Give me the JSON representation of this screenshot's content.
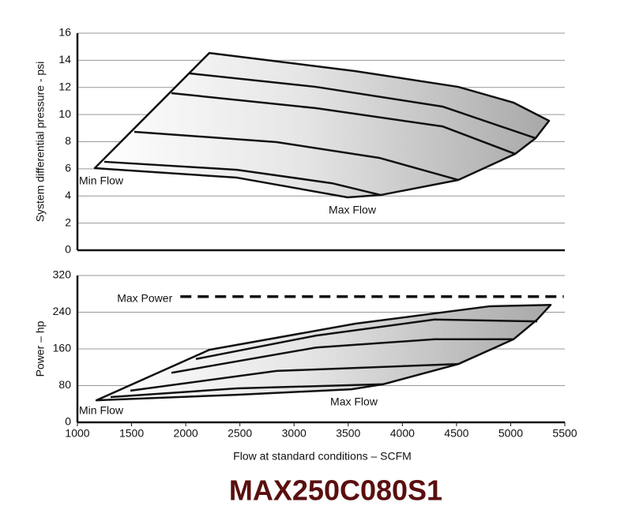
{
  "title": "MAX250C080S1",
  "chart_data": [
    {
      "type": "line",
      "ylabel": "System differential pressure - psi",
      "xlim": [
        1000,
        5500
      ],
      "ylim": [
        0,
        16
      ],
      "yticks": [
        0,
        2,
        4,
        6,
        8,
        10,
        12,
        14,
        16
      ],
      "grid": true,
      "annotations": [
        "Min Flow",
        "Max Flow"
      ],
      "area": {
        "x": [
          1160,
          2218,
          3567,
          4516,
          5026,
          5354,
          5230,
          5041,
          4516,
          3800,
          3494,
          2473,
          1160
        ],
        "values": [
          6.05,
          14.54,
          13.2,
          12.04,
          10.88,
          9.54,
          8.26,
          7.1,
          5.18,
          4.07,
          3.9,
          5.35,
          6.05
        ]
      },
      "series": [
        {
          "x": [
            2036,
            3203,
            4370,
            5230
          ],
          "values": [
            13.03,
            12.04,
            10.59,
            8.26
          ]
        },
        {
          "x": [
            1868,
            3203,
            4370,
            5041
          ],
          "values": [
            11.58,
            10.47,
            9.13,
            7.1
          ]
        },
        {
          "x": [
            1525,
            2838,
            3786,
            4516
          ],
          "values": [
            8.73,
            7.97,
            6.81,
            5.18
          ]
        },
        {
          "x": [
            1248,
            2473,
            3349,
            3800
          ],
          "values": [
            6.52,
            5.93,
            4.94,
            4.07
          ]
        }
      ]
    },
    {
      "type": "line",
      "ylabel": "Power – hp",
      "xlabel": "Flow at standard conditions – SCFM",
      "xlim": [
        1000,
        5500
      ],
      "xticks": [
        1000,
        1500,
        2000,
        2500,
        3000,
        3500,
        4000,
        4500,
        5000,
        5500
      ],
      "ylim": [
        0,
        320
      ],
      "yticks": [
        0,
        80,
        160,
        240,
        320
      ],
      "grid": true,
      "annotations": [
        "Min Flow",
        "Max Flow"
      ],
      "reference_line": {
        "label": "Max Power",
        "y": 274,
        "x": [
          1950,
          5490
        ],
        "style": "dashed"
      },
      "area": {
        "x": [
          1175,
          2218,
          3567,
          4808,
          5369,
          5245,
          5026,
          4516,
          3823,
          3531,
          2473,
          1175
        ],
        "values": [
          48,
          158,
          215,
          253,
          256,
          224,
          181,
          127,
          83,
          72,
          60,
          48
        ]
      },
      "series": [
        {
          "x": [
            2094,
            3203,
            4297,
            5245
          ],
          "values": [
            138,
            189,
            224,
            220
          ]
        },
        {
          "x": [
            1868,
            3203,
            4297,
            5026
          ],
          "values": [
            108,
            163,
            181,
            181
          ]
        },
        {
          "x": [
            1489,
            2838,
            4516
          ],
          "values": [
            69,
            112,
            127
          ]
        },
        {
          "x": [
            1306,
            2473,
            3823
          ],
          "values": [
            55,
            74,
            83
          ]
        }
      ]
    }
  ]
}
